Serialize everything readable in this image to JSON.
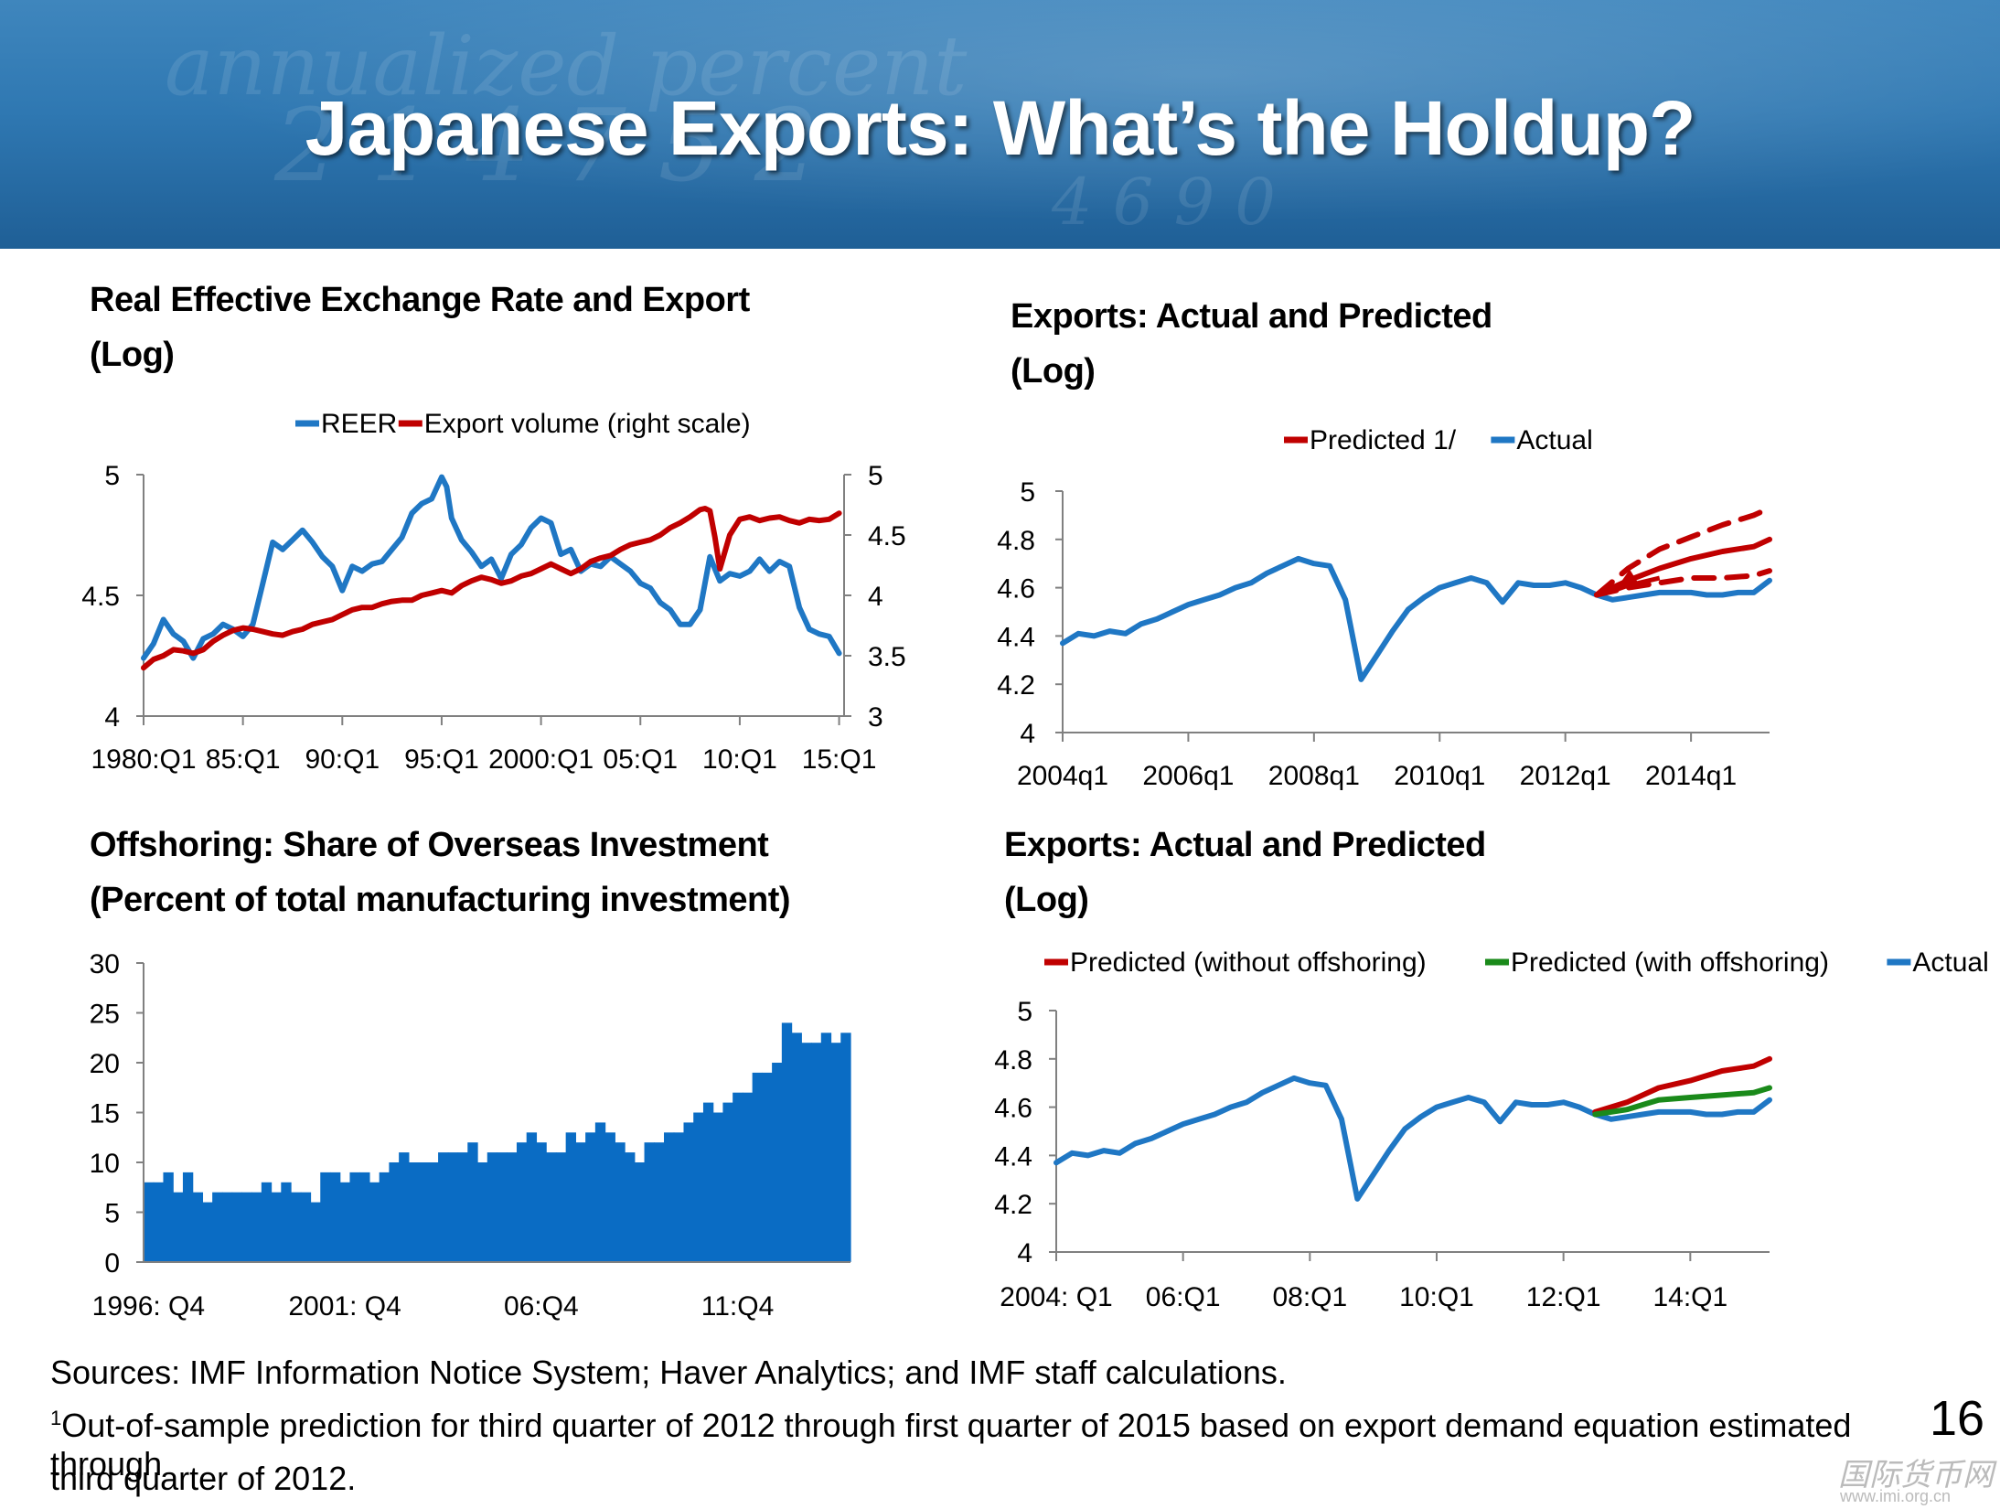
{
  "slide": {
    "title": "Japanese Exports:  What’s the Holdup?",
    "page_number": "16",
    "watermark": "国际货币网",
    "watermark_url": "www.imi.org.cn"
  },
  "footnotes": {
    "sources": "Sources: IMF Information Notice System; Haver Analytics; and IMF staff calculations.",
    "note_marker": "1",
    "note_line1": "Out-of-sample prediction for third quarter of 2012 through first quarter of 2015 based on export demand equation estimated through",
    "note_line2": "third quarter of 2012."
  },
  "colors": {
    "blue": "#1f77c4",
    "red": "#c00000",
    "green": "#1a8a1a",
    "bar": "#0a6cc4",
    "banner": "#2f78b2"
  },
  "chart_data": [
    {
      "id": "reer",
      "type": "line",
      "title_line1": "Real Effective Exchange Rate and Export",
      "title_line2": "(Log)",
      "legend": [
        "REER",
        "Export volume (right scale)"
      ],
      "x_range": [
        1980.0,
        2015.25
      ],
      "x_ticks": [
        1980,
        1985,
        1990,
        1995,
        2000,
        2005,
        2010,
        2015
      ],
      "x_tick_labels": [
        "1980:Q1",
        "85:Q1",
        "90:Q1",
        "95:Q1",
        "2000:Q1",
        "05:Q1",
        "10:Q1",
        "15:Q1"
      ],
      "left_axis": {
        "min": 4,
        "max": 5,
        "ticks": [
          "4",
          "4.5",
          "5"
        ]
      },
      "right_axis": {
        "min": 3,
        "max": 5,
        "ticks": [
          "3",
          "3.5",
          "4",
          "4.5",
          "5"
        ]
      },
      "series": [
        {
          "name": "REER",
          "axis": "left",
          "color": "#1f77c4",
          "x": [
            1980.0,
            1980.5,
            1981.0,
            1981.5,
            1982.0,
            1982.5,
            1983.0,
            1983.5,
            1984.0,
            1984.5,
            1985.0,
            1985.5,
            1986.0,
            1986.5,
            1987.0,
            1987.5,
            1988.0,
            1988.5,
            1989.0,
            1989.5,
            1990.0,
            1990.5,
            1991.0,
            1991.5,
            1992.0,
            1992.5,
            1993.0,
            1993.5,
            1994.0,
            1994.5,
            1995.0,
            1995.25,
            1995.5,
            1996.0,
            1996.5,
            1997.0,
            1997.5,
            1998.0,
            1998.5,
            1999.0,
            1999.5,
            2000.0,
            2000.5,
            2001.0,
            2001.5,
            2002.0,
            2002.5,
            2003.0,
            2003.5,
            2004.0,
            2004.5,
            2005.0,
            2005.5,
            2006.0,
            2006.5,
            2007.0,
            2007.5,
            2008.0,
            2008.5,
            2009.0,
            2009.5,
            2010.0,
            2010.5,
            2011.0,
            2011.5,
            2012.0,
            2012.5,
            2013.0,
            2013.5,
            2014.0,
            2014.5,
            2015.0
          ],
          "values": [
            4.24,
            4.3,
            4.4,
            4.34,
            4.31,
            4.24,
            4.32,
            4.34,
            4.38,
            4.36,
            4.33,
            4.38,
            4.55,
            4.72,
            4.69,
            4.73,
            4.77,
            4.72,
            4.66,
            4.62,
            4.52,
            4.62,
            4.6,
            4.63,
            4.64,
            4.69,
            4.74,
            4.84,
            4.88,
            4.9,
            4.99,
            4.95,
            4.82,
            4.73,
            4.68,
            4.62,
            4.65,
            4.57,
            4.67,
            4.71,
            4.78,
            4.82,
            4.8,
            4.67,
            4.69,
            4.6,
            4.63,
            4.62,
            4.66,
            4.63,
            4.6,
            4.55,
            4.53,
            4.47,
            4.44,
            4.38,
            4.38,
            4.44,
            4.66,
            4.56,
            4.59,
            4.58,
            4.6,
            4.65,
            4.6,
            4.64,
            4.62,
            4.45,
            4.36,
            4.34,
            4.33,
            4.26
          ]
        },
        {
          "name": "Export volume (right scale)",
          "axis": "right",
          "color": "#c00000",
          "x": [
            1980.0,
            1980.5,
            1981.0,
            1981.5,
            1982.0,
            1982.5,
            1983.0,
            1983.5,
            1984.0,
            1984.5,
            1985.0,
            1985.5,
            1986.0,
            1986.5,
            1987.0,
            1987.5,
            1988.0,
            1988.5,
            1989.0,
            1989.5,
            1990.0,
            1990.5,
            1991.0,
            1991.5,
            1992.0,
            1992.5,
            1993.0,
            1993.5,
            1994.0,
            1994.5,
            1995.0,
            1995.5,
            1996.0,
            1996.5,
            1997.0,
            1997.5,
            1998.0,
            1998.5,
            1999.0,
            1999.5,
            2000.0,
            2000.5,
            2001.0,
            2001.5,
            2002.0,
            2002.5,
            2003.0,
            2003.5,
            2004.0,
            2004.5,
            2005.0,
            2005.5,
            2006.0,
            2006.5,
            2007.0,
            2007.5,
            2008.0,
            2008.25,
            2008.5,
            2008.75,
            2009.0,
            2009.5,
            2010.0,
            2010.5,
            2011.0,
            2011.5,
            2012.0,
            2012.5,
            2013.0,
            2013.5,
            2014.0,
            2014.5,
            2015.0
          ],
          "values": [
            3.4,
            3.47,
            3.5,
            3.55,
            3.54,
            3.52,
            3.55,
            3.62,
            3.67,
            3.71,
            3.73,
            3.72,
            3.7,
            3.68,
            3.67,
            3.7,
            3.72,
            3.76,
            3.78,
            3.8,
            3.84,
            3.88,
            3.9,
            3.9,
            3.93,
            3.95,
            3.96,
            3.96,
            4.0,
            4.02,
            4.04,
            4.02,
            4.08,
            4.12,
            4.15,
            4.13,
            4.1,
            4.12,
            4.16,
            4.18,
            4.22,
            4.26,
            4.22,
            4.18,
            4.22,
            4.28,
            4.31,
            4.33,
            4.38,
            4.42,
            4.44,
            4.46,
            4.5,
            4.56,
            4.6,
            4.65,
            4.71,
            4.72,
            4.7,
            4.48,
            4.22,
            4.5,
            4.63,
            4.65,
            4.62,
            4.64,
            4.65,
            4.62,
            4.6,
            4.63,
            4.62,
            4.63,
            4.68
          ]
        }
      ]
    },
    {
      "id": "exports-predicted",
      "type": "line",
      "title_line1": "Exports: Actual and Predicted",
      "title_line2": "(Log)",
      "legend": [
        "Predicted 1/",
        "Actual"
      ],
      "x_range": [
        2004.0,
        2015.25
      ],
      "x_ticks": [
        2004,
        2006,
        2008,
        2010,
        2012,
        2014
      ],
      "x_tick_labels": [
        "2004q1",
        "2006q1",
        "2008q1",
        "2010q1",
        "2012q1",
        "2014q1"
      ],
      "y_axis": {
        "min": 4,
        "max": 5,
        "ticks": [
          "4",
          "4.2",
          "4.4",
          "4.6",
          "4.8",
          "5"
        ]
      },
      "series": [
        {
          "name": "Actual",
          "color": "#1f77c4",
          "style": "solid",
          "x": [
            2004.0,
            2004.25,
            2004.5,
            2004.75,
            2005.0,
            2005.25,
            2005.5,
            2005.75,
            2006.0,
            2006.25,
            2006.5,
            2006.75,
            2007.0,
            2007.25,
            2007.5,
            2007.75,
            2008.0,
            2008.25,
            2008.5,
            2008.75,
            2009.0,
            2009.25,
            2009.5,
            2009.75,
            2010.0,
            2010.25,
            2010.5,
            2010.75,
            2011.0,
            2011.25,
            2011.5,
            2011.75,
            2012.0,
            2012.25,
            2012.5,
            2012.75,
            2013.0,
            2013.25,
            2013.5,
            2013.75,
            2014.0,
            2014.25,
            2014.5,
            2014.75,
            2015.0,
            2015.25
          ],
          "values": [
            4.37,
            4.41,
            4.4,
            4.42,
            4.41,
            4.45,
            4.47,
            4.5,
            4.53,
            4.55,
            4.57,
            4.6,
            4.62,
            4.66,
            4.69,
            4.72,
            4.7,
            4.69,
            4.55,
            4.22,
            4.32,
            4.42,
            4.51,
            4.56,
            4.6,
            4.62,
            4.64,
            4.62,
            4.54,
            4.62,
            4.61,
            4.61,
            4.62,
            4.6,
            4.57,
            4.55,
            4.56,
            4.57,
            4.58,
            4.58,
            4.58,
            4.57,
            4.57,
            4.58,
            4.58,
            4.63
          ]
        },
        {
          "name": "Predicted 1/",
          "color": "#c00000",
          "style": "solid",
          "x": [
            2012.5,
            2013.0,
            2013.5,
            2014.0,
            2014.5,
            2015.0,
            2015.25
          ],
          "values": [
            4.57,
            4.63,
            4.68,
            4.72,
            4.75,
            4.77,
            4.8
          ]
        },
        {
          "name": "Predicted upper band",
          "color": "#c00000",
          "style": "dashed",
          "x": [
            2012.5,
            2013.0,
            2013.5,
            2014.0,
            2014.5,
            2015.0,
            2015.25
          ],
          "values": [
            4.57,
            4.68,
            4.76,
            4.81,
            4.86,
            4.9,
            4.93
          ]
        },
        {
          "name": "Predicted lower band",
          "color": "#c00000",
          "style": "dashed",
          "x": [
            2012.5,
            2013.0,
            2013.5,
            2014.0,
            2014.5,
            2015.0,
            2015.25
          ],
          "values": [
            4.57,
            4.6,
            4.62,
            4.64,
            4.64,
            4.65,
            4.67
          ]
        }
      ]
    },
    {
      "id": "offshoring",
      "type": "bar",
      "title_line1": "Offshoring: Share of Overseas Investment",
      "title_line2": "(Percent of total manufacturing investment)",
      "y_axis": {
        "min": 0,
        "max": 30,
        "ticks": [
          "0",
          "5",
          "10",
          "15",
          "20",
          "25",
          "30"
        ]
      },
      "x_tick_labels": [
        "1996: Q4",
        "2001: Q4",
        "06:Q4",
        "11:Q4"
      ],
      "x_tick_index": [
        0,
        20,
        40,
        60
      ],
      "color": "#0a6cc4",
      "values": [
        8,
        8,
        9,
        7,
        9,
        7,
        6,
        7,
        7,
        7,
        7,
        7,
        8,
        7,
        8,
        7,
        7,
        6,
        9,
        9,
        8,
        9,
        9,
        8,
        9,
        10,
        11,
        10,
        10,
        10,
        11,
        11,
        11,
        12,
        10,
        11,
        11,
        11,
        12,
        13,
        12,
        11,
        11,
        13,
        12,
        13,
        14,
        13,
        12,
        11,
        10,
        12,
        12,
        13,
        13,
        14,
        15,
        16,
        15,
        16,
        17,
        17,
        19,
        19,
        20,
        24,
        23,
        22,
        22,
        23,
        22,
        23
      ]
    },
    {
      "id": "exports-offshoring",
      "type": "line",
      "title_line1": "Exports: Actual and Predicted",
      "title_line2": "(Log)",
      "legend": [
        "Predicted (without offshoring)",
        "Predicted (with offshoring)",
        "Actual"
      ],
      "x_range": [
        2004.0,
        2015.25
      ],
      "x_ticks": [
        2004,
        2006,
        2008,
        2010,
        2012,
        2014
      ],
      "x_tick_labels": [
        "2004: Q1",
        "06:Q1",
        "08:Q1",
        "10:Q1",
        "12:Q1",
        "14:Q1"
      ],
      "y_axis": {
        "min": 4,
        "max": 5,
        "ticks": [
          "4",
          "4.2",
          "4.4",
          "4.6",
          "4.8",
          "5"
        ]
      },
      "series": [
        {
          "name": "Actual",
          "color": "#1f77c4",
          "style": "solid",
          "x": [
            2004.0,
            2004.25,
            2004.5,
            2004.75,
            2005.0,
            2005.25,
            2005.5,
            2005.75,
            2006.0,
            2006.25,
            2006.5,
            2006.75,
            2007.0,
            2007.25,
            2007.5,
            2007.75,
            2008.0,
            2008.25,
            2008.5,
            2008.75,
            2009.0,
            2009.25,
            2009.5,
            2009.75,
            2010.0,
            2010.25,
            2010.5,
            2010.75,
            2011.0,
            2011.25,
            2011.5,
            2011.75,
            2012.0,
            2012.25,
            2012.5,
            2012.75,
            2013.0,
            2013.25,
            2013.5,
            2013.75,
            2014.0,
            2014.25,
            2014.5,
            2014.75,
            2015.0,
            2015.25
          ],
          "values": [
            4.37,
            4.41,
            4.4,
            4.42,
            4.41,
            4.45,
            4.47,
            4.5,
            4.53,
            4.55,
            4.57,
            4.6,
            4.62,
            4.66,
            4.69,
            4.72,
            4.7,
            4.69,
            4.55,
            4.22,
            4.32,
            4.42,
            4.51,
            4.56,
            4.6,
            4.62,
            4.64,
            4.62,
            4.54,
            4.62,
            4.61,
            4.61,
            4.62,
            4.6,
            4.57,
            4.55,
            4.56,
            4.57,
            4.58,
            4.58,
            4.58,
            4.57,
            4.57,
            4.58,
            4.58,
            4.63
          ]
        },
        {
          "name": "Predicted (without offshoring)",
          "color": "#c00000",
          "style": "solid",
          "x": [
            2012.5,
            2013.0,
            2013.5,
            2014.0,
            2014.5,
            2015.0,
            2015.25
          ],
          "values": [
            4.58,
            4.62,
            4.68,
            4.71,
            4.75,
            4.77,
            4.8
          ]
        },
        {
          "name": "Predicted (with offshoring)",
          "color": "#1a8a1a",
          "style": "solid",
          "x": [
            2012.5,
            2013.0,
            2013.5,
            2014.0,
            2014.5,
            2015.0,
            2015.25
          ],
          "values": [
            4.57,
            4.59,
            4.63,
            4.64,
            4.65,
            4.66,
            4.68
          ]
        }
      ]
    }
  ]
}
